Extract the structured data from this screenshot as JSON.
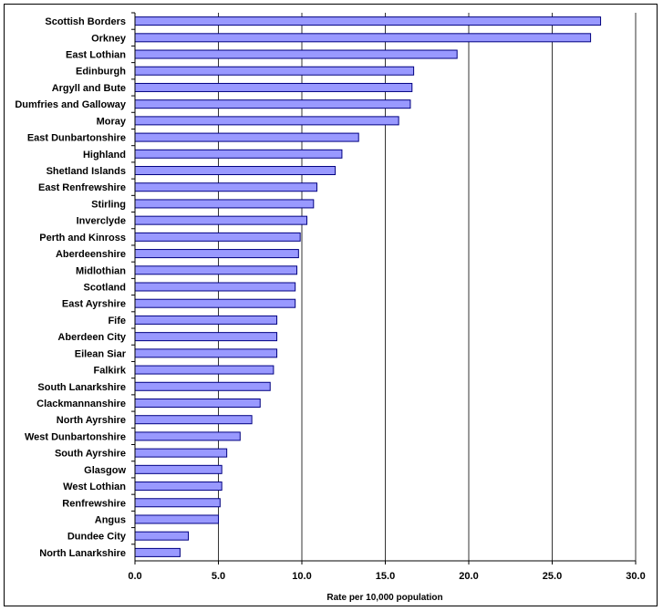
{
  "colors": {
    "bar_fill": "#9999FF",
    "bar_stroke": "#000080",
    "gridline": "#000000",
    "axis": "#000000"
  },
  "chart_data": {
    "type": "bar",
    "orientation": "horizontal",
    "title": "",
    "xlabel": "Rate per 10,000 population",
    "ylabel": "",
    "xlim": [
      0,
      30
    ],
    "xticks": [
      "0.0",
      "5.0",
      "10.0",
      "15.0",
      "20.0",
      "25.0",
      "30.0"
    ],
    "grid": "vertical major gridlines",
    "legend": "none",
    "categories": [
      "Scottish Borders",
      "Orkney",
      "East Lothian",
      "Edinburgh",
      "Argyll and Bute",
      "Dumfries and Galloway",
      "Moray",
      "East Dunbartonshire",
      "Highland",
      "Shetland Islands",
      "East Renfrewshire",
      "Stirling",
      "Inverclyde",
      "Perth and Kinross",
      "Aberdeenshire",
      "Midlothian",
      "Scotland",
      "East Ayrshire",
      "Fife",
      "Aberdeen City",
      "Eilean Siar",
      "Falkirk",
      "South Lanarkshire",
      "Clackmannanshire",
      "North Ayrshire",
      "West Dunbartonshire",
      "South Ayrshire",
      "Glasgow",
      "West Lothian",
      "Renfrewshire",
      "Angus",
      "Dundee City",
      "North Lanarkshire"
    ],
    "values": [
      27.9,
      27.3,
      19.3,
      16.7,
      16.6,
      16.5,
      15.8,
      13.4,
      12.4,
      12.0,
      10.9,
      10.7,
      10.3,
      9.9,
      9.8,
      9.7,
      9.6,
      9.6,
      8.5,
      8.5,
      8.5,
      8.3,
      8.1,
      7.5,
      7.0,
      6.3,
      5.5,
      5.2,
      5.2,
      5.1,
      5.0,
      3.2,
      2.7
    ]
  }
}
